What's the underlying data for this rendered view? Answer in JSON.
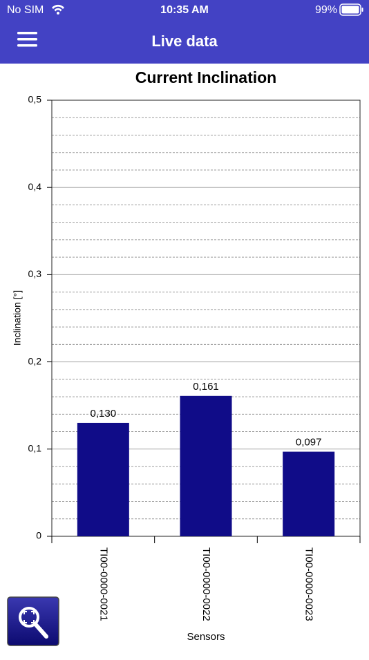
{
  "status_bar": {
    "carrier": "No SIM",
    "time": "10:35 AM",
    "battery": "99%"
  },
  "nav_bar": {
    "title": "Live data"
  },
  "chart_data": {
    "type": "bar",
    "title": "Current Inclination",
    "y_label": "Inclination [°]",
    "x_label": "Sensors",
    "categories": [
      "TI00-0000-0021",
      "TI00-0000-0022",
      "TI00-0000-0023"
    ],
    "values": [
      0.13,
      0.161,
      0.097
    ],
    "value_labels": [
      "0,130",
      "0,161",
      "0,097"
    ],
    "color": "#100c88",
    "ylim": [
      0,
      0.5
    ],
    "yticks": [
      0,
      {
        "value": 0.1,
        "label": "0,1"
      },
      {
        "value": 0.2,
        "label": "0,2"
      },
      {
        "value": 0.3,
        "label": "0,3"
      },
      {
        "value": 0.4,
        "label": "0,4"
      },
      {
        "value": 0.5,
        "label": "0,5"
      }
    ],
    "minor_yticks": [
      0.02,
      0.04,
      0.06,
      0.08,
      0.12,
      0.14,
      0.16,
      0.18,
      0.22,
      0.24,
      0.26,
      0.28,
      0.32,
      0.34,
      0.36,
      0.38,
      0.42,
      0.44,
      0.46,
      0.48
    ],
    "grid": true
  }
}
